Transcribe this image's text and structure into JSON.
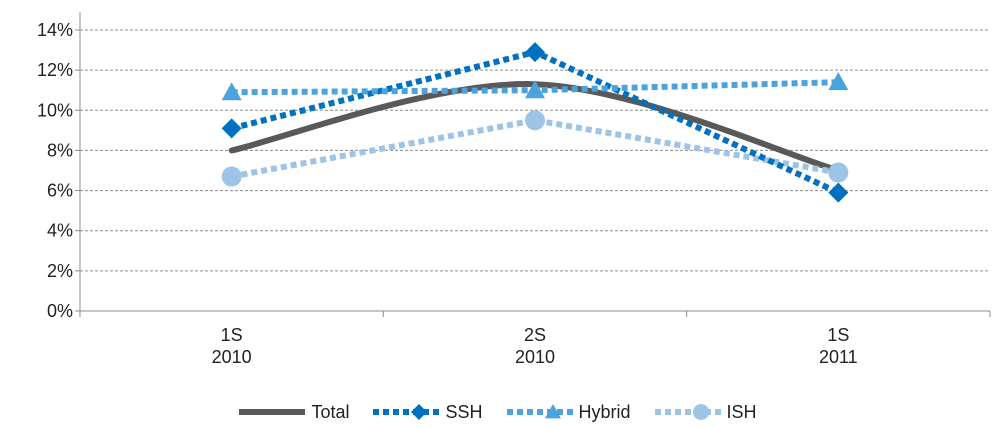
{
  "chart_data": {
    "type": "line",
    "categories": [
      [
        "1S",
        "2010"
      ],
      [
        "2S",
        "2010"
      ],
      [
        "1S",
        "2011"
      ]
    ],
    "ylim": [
      0,
      14
    ],
    "yticks": [
      "0%",
      "2%",
      "4%",
      "6%",
      "8%",
      "10%",
      "12%",
      "14%"
    ],
    "grid": true,
    "legend_position": "bottom",
    "series": [
      {
        "name": "Total",
        "values": [
          8.0,
          11.3,
          7.0
        ],
        "color": "#595959",
        "style": "solid-smooth",
        "marker": "none"
      },
      {
        "name": "SSH",
        "values": [
          9.1,
          12.9,
          5.9
        ],
        "color": "#0070C0",
        "style": "dotted",
        "marker": "diamond"
      },
      {
        "name": "Hybrid",
        "values": [
          10.9,
          11.0,
          11.4
        ],
        "color": "#4AA3DF",
        "style": "dotted",
        "marker": "triangle"
      },
      {
        "name": "ISH",
        "values": [
          6.7,
          9.5,
          6.9
        ],
        "color": "#9DC3E6",
        "style": "dotted",
        "marker": "circle"
      }
    ]
  }
}
